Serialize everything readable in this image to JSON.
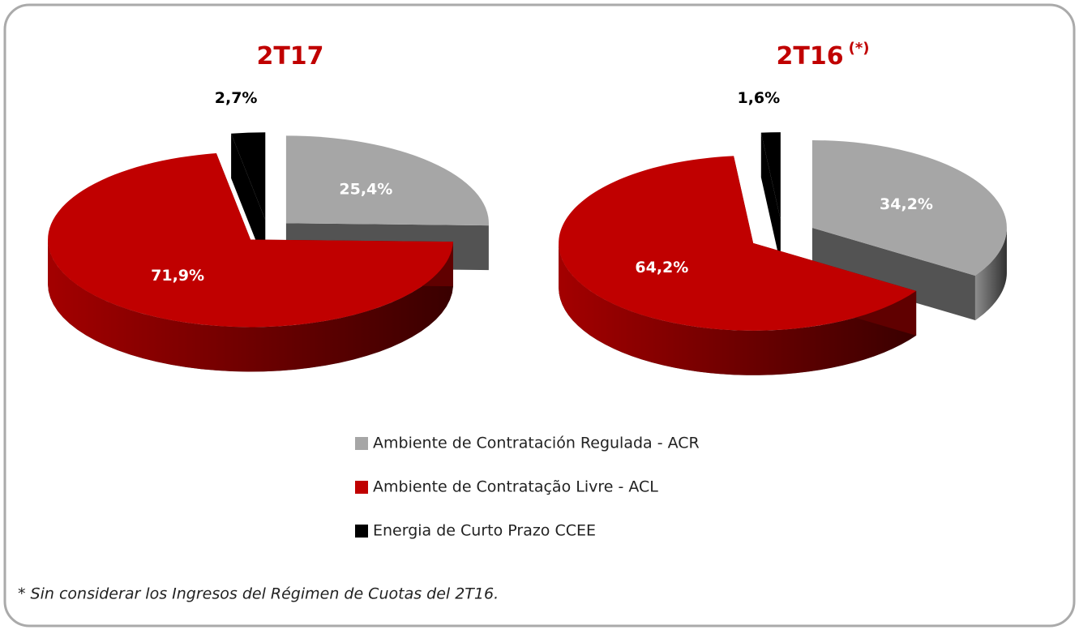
{
  "chart_data": [
    {
      "type": "pie",
      "title": "2T17",
      "values": [
        25.4,
        71.9,
        2.7
      ],
      "value_labels": [
        "25,4%",
        "71,9%",
        "2,7%"
      ]
    },
    {
      "type": "pie",
      "title": "2T16",
      "title_note": "(*)",
      "values": [
        34.2,
        64.2,
        1.6
      ],
      "value_labels": [
        "34,2%",
        "64,2%",
        "1,6%"
      ]
    }
  ],
  "legend": {
    "entries": [
      {
        "name": "Ambiente de Contratación Regulada - ACR",
        "color": "#a6a6a6"
      },
      {
        "name": "Ambiente de Contratação Livre - ACL",
        "color": "#c00000"
      },
      {
        "name": "Energia de Curto Prazo CCEE",
        "color": "#000000"
      }
    ]
  },
  "footnote": "* Sin considerar los Ingresos del Régimen de Cuotas del 2T16."
}
